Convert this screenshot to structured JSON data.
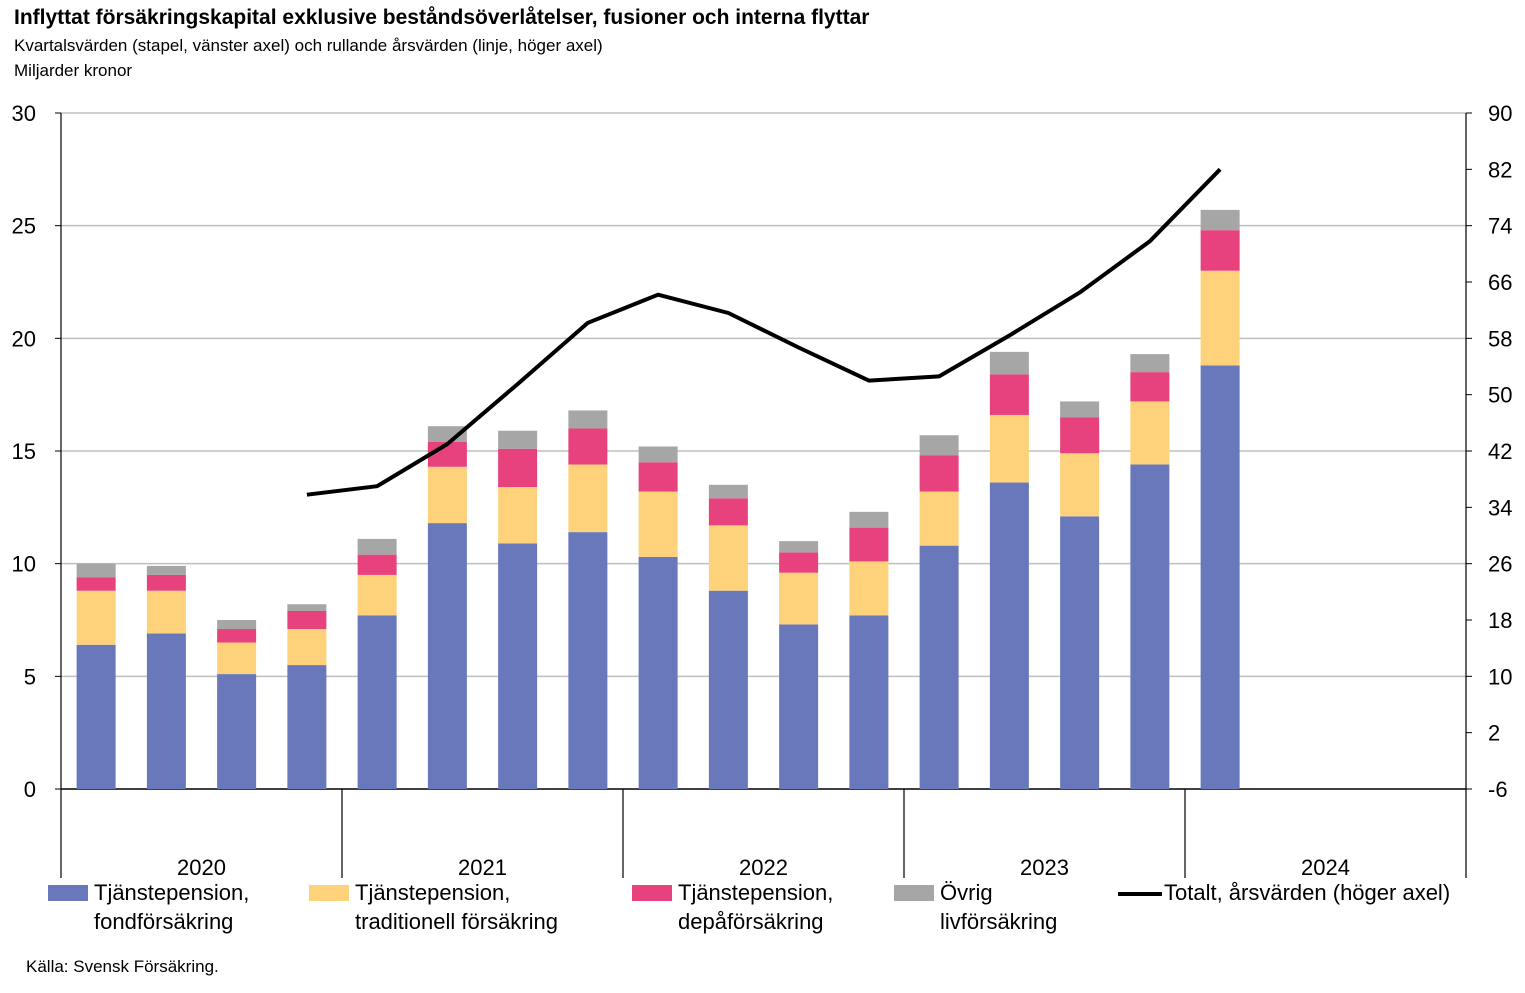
{
  "chart_data": {
    "type": "bar",
    "title": "Inflyttat försäkringskapital  exklusive beståndsöverlåtelser, fusioner och interna flyttar",
    "subtitle": "Kvartalsvärden (stapel, vänster axel) och rullande årsvärden (linje, höger axel)",
    "unit_label": "Miljarder kronor",
    "source": "Källa: Svensk Försäkring.",
    "stacked": true,
    "years": [
      "2020",
      "2021",
      "2022",
      "2023",
      "2024"
    ],
    "quarters_per_year": 4,
    "y_left": {
      "min": 0,
      "max": 30,
      "ticks": [
        "0",
        "5",
        "10",
        "15",
        "20",
        "25",
        "30"
      ]
    },
    "y_right": {
      "min": -6,
      "max": 90,
      "ticks": [
        "-6",
        "2",
        "10",
        "18",
        "26",
        "34",
        "42",
        "50",
        "58",
        "66",
        "74",
        "82",
        "90"
      ]
    },
    "series": [
      {
        "name": "Tjänstepension, fondförsäkring",
        "color": "#6878BB",
        "values": [
          6.4,
          6.9,
          5.1,
          5.5,
          7.7,
          11.8,
          10.9,
          11.4,
          10.3,
          8.8,
          7.3,
          7.7,
          10.8,
          13.6,
          12.1,
          14.4,
          18.8
        ]
      },
      {
        "name": "Tjänstepension, traditionell försäkring",
        "color": "#FDD27A",
        "values": [
          2.4,
          1.9,
          1.4,
          1.6,
          1.8,
          2.5,
          2.5,
          3.0,
          2.9,
          2.9,
          2.3,
          2.4,
          2.4,
          3.0,
          2.8,
          2.8,
          4.2
        ]
      },
      {
        "name": "Tjänstepension, depåförsäkring",
        "color": "#E8427E",
        "values": [
          0.6,
          0.7,
          0.6,
          0.8,
          0.9,
          1.1,
          1.7,
          1.6,
          1.3,
          1.2,
          0.9,
          1.5,
          1.6,
          1.8,
          1.6,
          1.3,
          1.8
        ]
      },
      {
        "name": "Övrig livförsäkring",
        "color": "#A6A6A6",
        "values": [
          0.6,
          0.4,
          0.4,
          0.3,
          0.7,
          0.7,
          0.8,
          0.8,
          0.7,
          0.6,
          0.5,
          0.7,
          0.9,
          1.0,
          0.7,
          0.8,
          0.9
        ]
      }
    ],
    "line": {
      "name": "Totalt, årsvärden (höger axel)",
      "color": "#000000",
      "axis": "right",
      "values": [
        null,
        null,
        null,
        35.8,
        37.0,
        43.0,
        51.5,
        60.2,
        64.2,
        61.6,
        56.7,
        52.0,
        52.6,
        58.4,
        64.5,
        71.8,
        82.0
      ]
    },
    "legend": [
      {
        "label_line1": "Tjänstepension,",
        "label_line2": "fondförsäkring",
        "color": "#6878BB",
        "kind": "bar"
      },
      {
        "label_line1": "Tjänstepension,",
        "label_line2": "traditionell försäkring",
        "color": "#FDD27A",
        "kind": "bar"
      },
      {
        "label_line1": "Tjänstepension,",
        "label_line2": "depåförsäkring",
        "color": "#E8427E",
        "kind": "bar"
      },
      {
        "label_line1": "Övrig",
        "label_line2": "livförsäkring",
        "color": "#A6A6A6",
        "kind": "bar"
      },
      {
        "label_line1": "Totalt, årsvärden (höger axel)",
        "label_line2": "",
        "color": "#000000",
        "kind": "line"
      }
    ],
    "legend_position": "bottom",
    "grid": true
  }
}
